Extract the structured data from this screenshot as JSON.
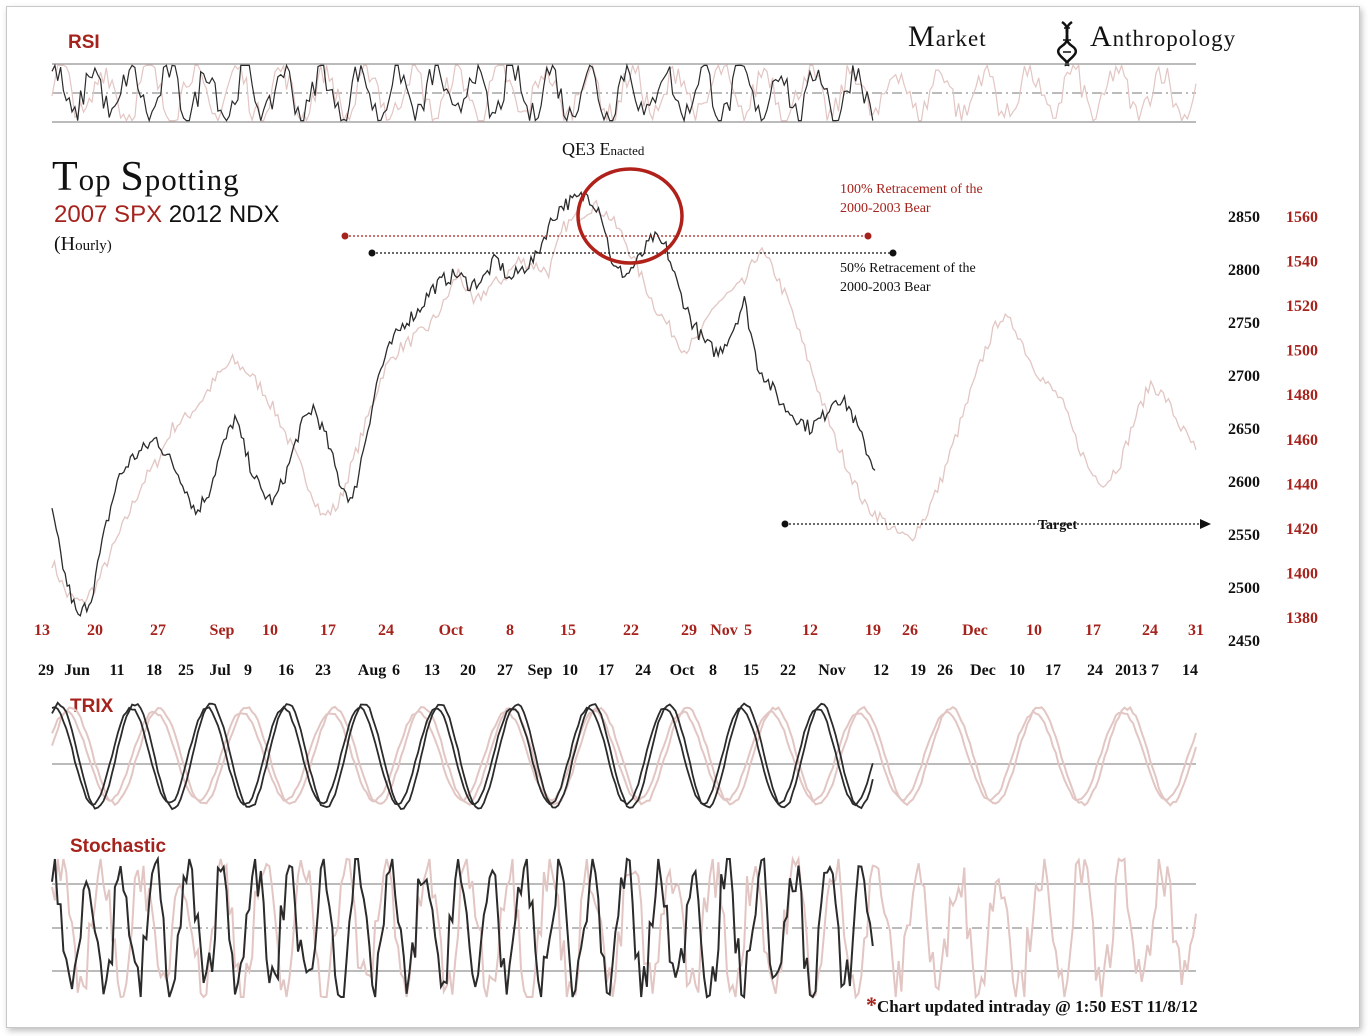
{
  "brand": {
    "word1_cap": "M",
    "word1_rest": "arket",
    "word2_cap": "A",
    "word2_rest": "nthropology"
  },
  "title": {
    "main_cap1": "T",
    "main_rest1": "op ",
    "main_cap2": "S",
    "main_rest2": "potting",
    "sub_red": "2007 SPX",
    "sub_black": " 2012 NDX",
    "hourly_open": "(H",
    "hourly_rest": "ourly)"
  },
  "panels": {
    "rsi": "RSI",
    "trix": "TRIX",
    "stochastic": "Stochastic"
  },
  "annotations": {
    "qe3_cap1": "QE3 E",
    "qe3_rest": "nacted",
    "retrace100_l1": "100% Retracement of the",
    "retrace100_l2": "2000-2003 Bear",
    "retrace50_l1": "50% Retracement of the",
    "retrace50_l2": "2000-2003 Bear",
    "target": "Target"
  },
  "footer": {
    "asterisk": "*",
    "text": "Chart updated intraday @ 1:50 EST 11/8/12"
  },
  "colors": {
    "spx_2007": "#a5231c",
    "spx_2007_line": "#e2c6c3",
    "ndx_2012": "#2b2b2b",
    "grid": "#777777",
    "circle": "#b0211a"
  },
  "chart_data": {
    "type": "line",
    "series": [
      {
        "name": "2007 SPX",
        "axis": "right",
        "values": [
          1405,
          1390,
          1386,
          1395,
          1410,
          1425,
          1440,
          1450,
          1465,
          1470,
          1478,
          1488,
          1495,
          1490,
          1482,
          1470,
          1455,
          1440,
          1425,
          1430,
          1450,
          1470,
          1490,
          1500,
          1505,
          1510,
          1520,
          1535,
          1520,
          1528,
          1532,
          1540,
          1538,
          1535,
          1555,
          1560,
          1565,
          1560,
          1550,
          1535,
          1520,
          1510,
          1500,
          1505,
          1520,
          1525,
          1530,
          1545,
          1535,
          1520,
          1500,
          1480,
          1460,
          1445,
          1430,
          1425,
          1418,
          1415,
          1425,
          1440,
          1460,
          1480,
          1500,
          1515,
          1510,
          1495,
          1485,
          1478,
          1460,
          1445,
          1440,
          1450,
          1470,
          1485,
          1478,
          1465,
          1455
        ]
      },
      {
        "name": "2012 NDX",
        "axis": "left",
        "values": [
          2570,
          2510,
          2470,
          2490,
          2550,
          2600,
          2620,
          2630,
          2640,
          2620,
          2600,
          2570,
          2590,
          2630,
          2660,
          2620,
          2590,
          2580,
          2610,
          2650,
          2670,
          2640,
          2600,
          2580,
          2640,
          2700,
          2730,
          2750,
          2760,
          2780,
          2790,
          2795,
          2785,
          2790,
          2810,
          2790,
          2800,
          2810,
          2840,
          2860,
          2865,
          2870,
          2855,
          2800,
          2795,
          2810,
          2830,
          2820,
          2780,
          2750,
          2730,
          2720,
          2740,
          2770,
          2710,
          2690,
          2670,
          2660,
          2650,
          2660,
          2680,
          2670,
          2640,
          2610
        ]
      }
    ],
    "left_axis": {
      "ticks": [
        2450,
        2500,
        2550,
        2600,
        2650,
        2700,
        2750,
        2800,
        2850
      ]
    },
    "right_axis": {
      "ticks": [
        1380,
        1400,
        1420,
        1440,
        1460,
        1480,
        1500,
        1520,
        1540,
        1560
      ]
    },
    "x_ticks_2007": [
      "13",
      "20",
      "27",
      "Sep",
      "10",
      "17",
      "24",
      "Oct",
      "8",
      "15",
      "22",
      "29",
      "Nov",
      "5",
      "12",
      "19",
      "26",
      "Dec",
      "10",
      "17",
      "24",
      "31"
    ],
    "x_ticks_2012": [
      "29",
      "Jun",
      "11",
      "18",
      "25",
      "Jul",
      "9",
      "16",
      "23",
      "Aug",
      "6",
      "13",
      "20",
      "27",
      "Sep",
      "10",
      "17",
      "24",
      "Oct",
      "8",
      "15",
      "22",
      "Nov",
      "12",
      "19",
      "26",
      "Dec",
      "10",
      "17",
      "24",
      "2013",
      "7",
      "14"
    ],
    "levels": {
      "retrace_100_spx": 1555,
      "retrace_50_ndx": 2815,
      "target_ndx": 2550
    }
  }
}
